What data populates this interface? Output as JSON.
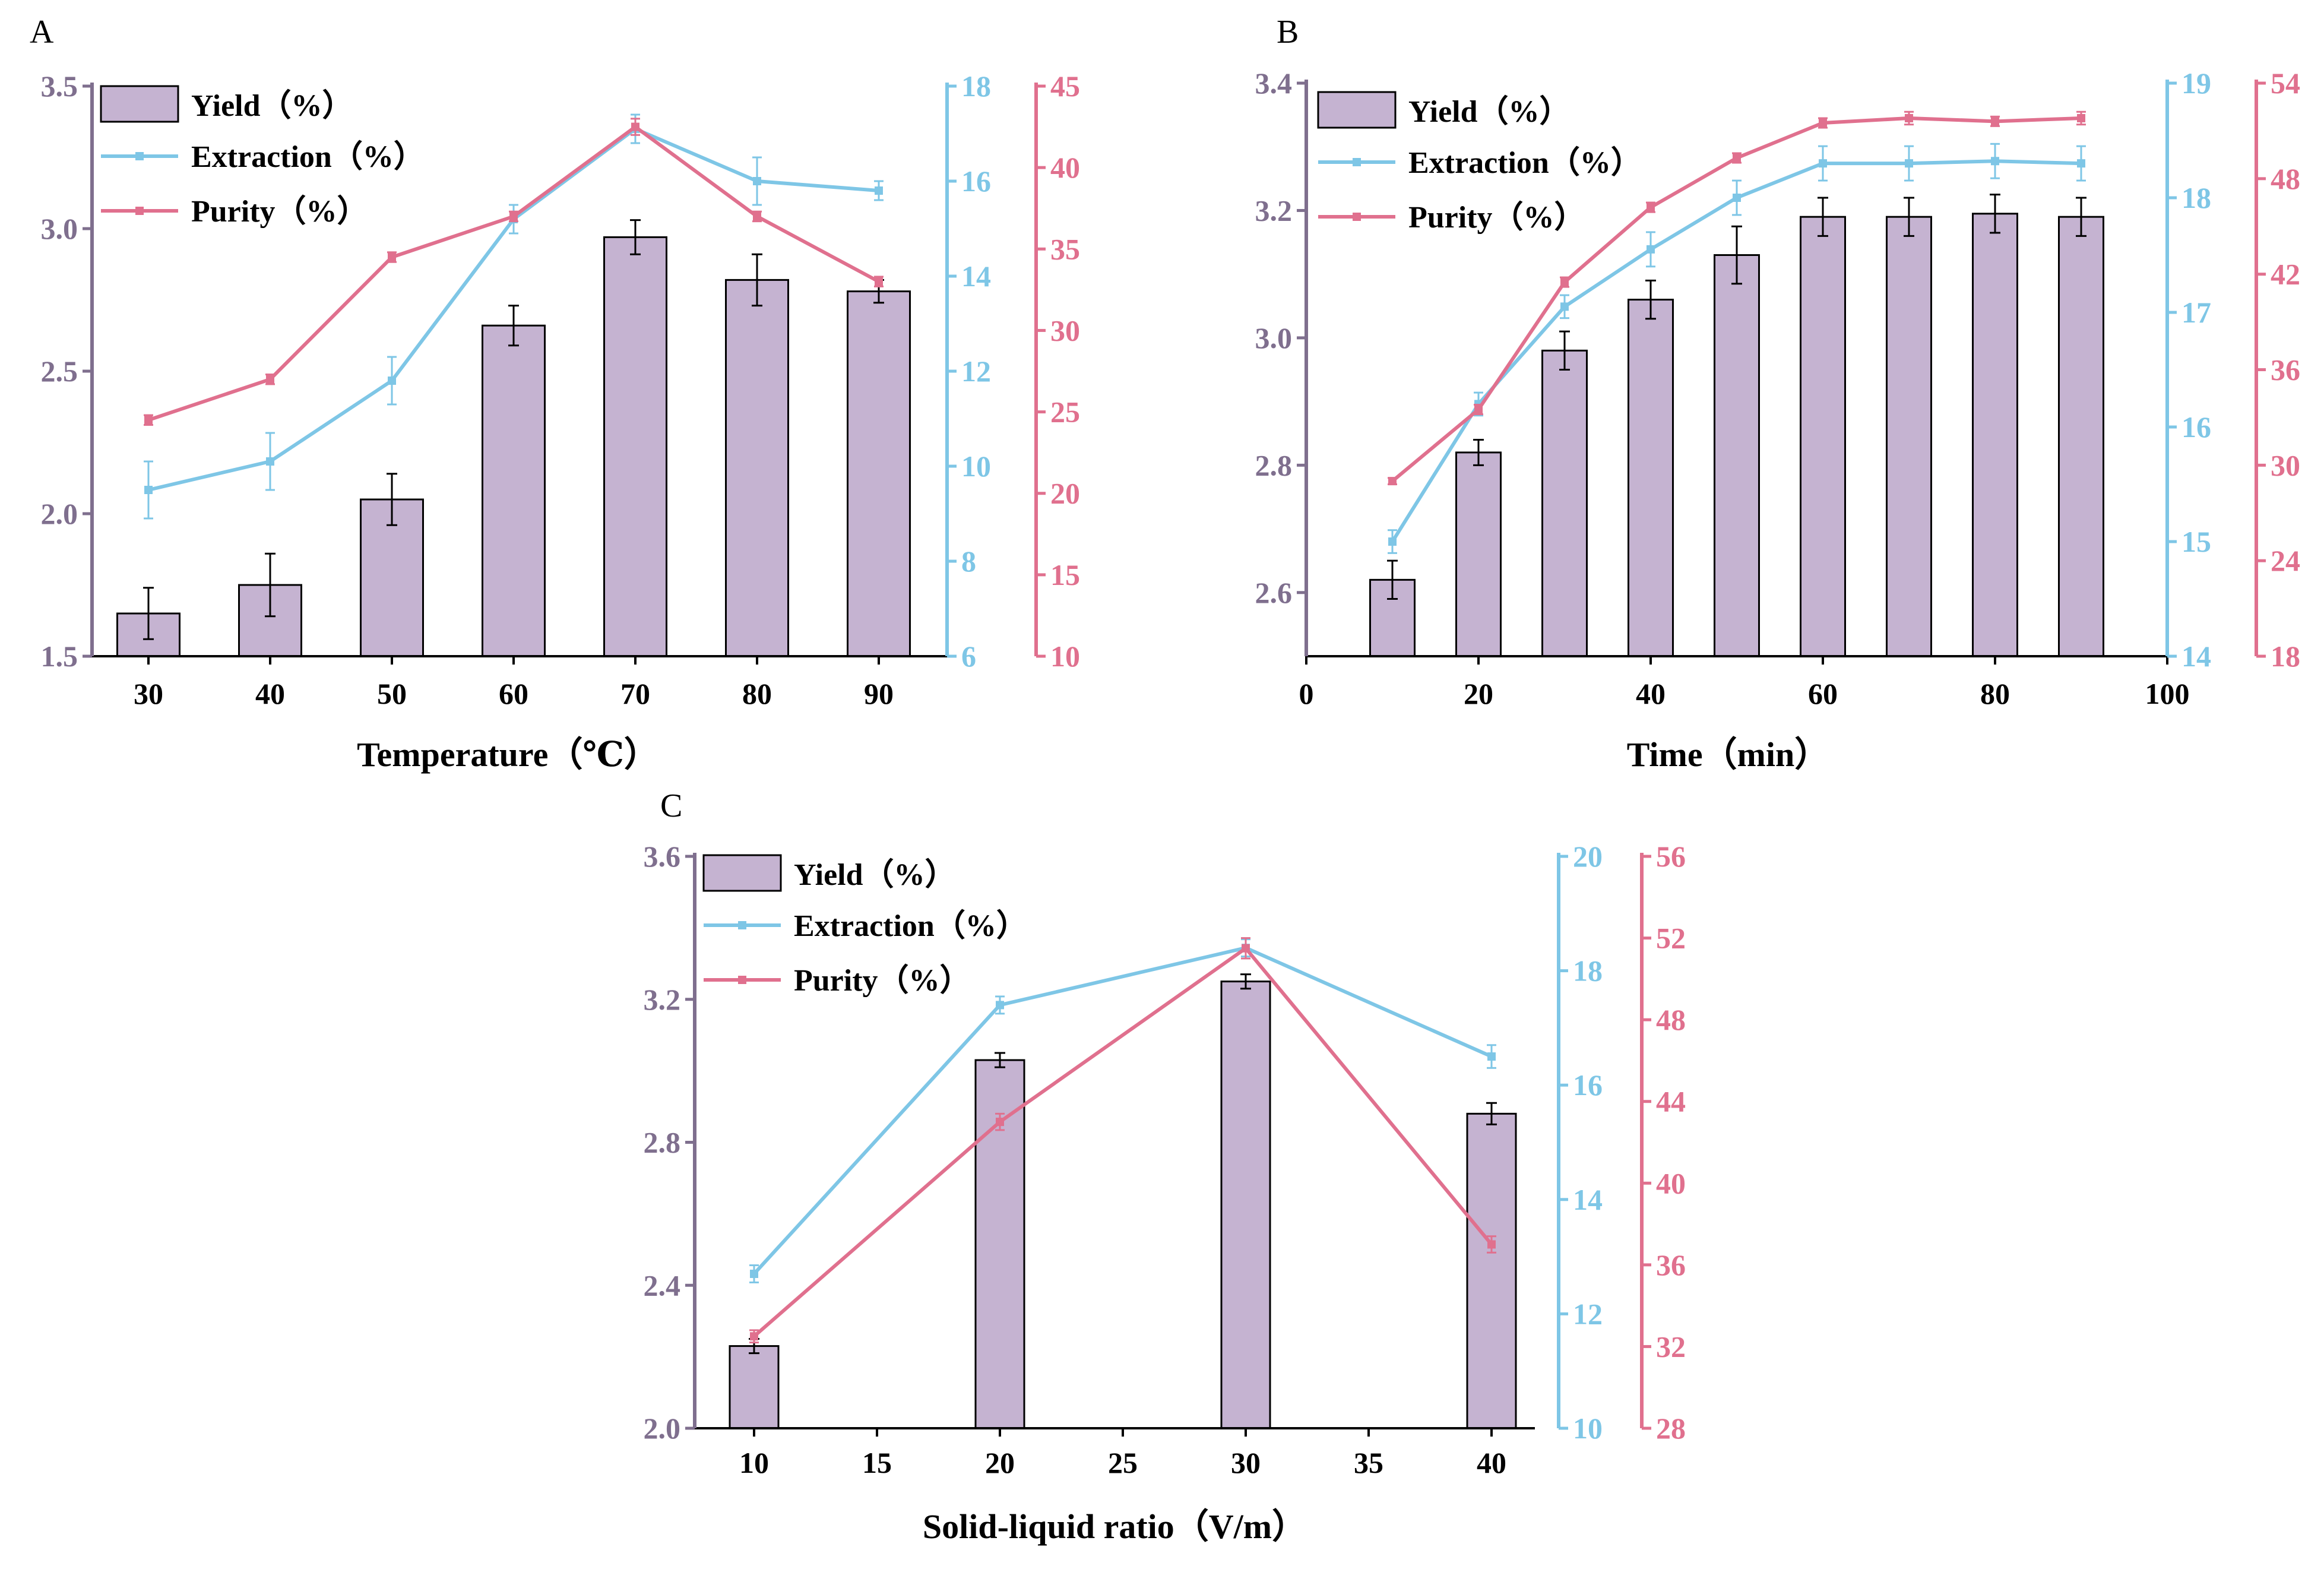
{
  "colors": {
    "yield_axis": "#7f6f8e",
    "bar_fill": "#c5b3d1",
    "bar_stroke": "#000000",
    "extraction": "#7ec6e6",
    "purity": "#e0708e",
    "axis_black": "#000000"
  },
  "chart_data": [
    {
      "type": "bar",
      "panel_label": "A",
      "xlabel": "Temperature（℃）",
      "x_numeric": false,
      "categories": [
        "30",
        "40",
        "50",
        "60",
        "70",
        "80",
        "90"
      ],
      "x_ticks": [
        "30",
        "40",
        "50",
        "60",
        "70",
        "80",
        "90"
      ],
      "legend": {
        "yield": "Yield（%）",
        "extraction": "Extraction（%）",
        "purity": "Purity（%）"
      },
      "legend_placement": "top-left",
      "axes": {
        "yield": {
          "range": [
            1.5,
            3.5
          ],
          "ticks": [
            "1.5",
            "2.0",
            "2.5",
            "3.0",
            "3.5"
          ]
        },
        "extraction": {
          "range": [
            6,
            18
          ],
          "ticks": [
            "6",
            "8",
            "10",
            "12",
            "14",
            "16",
            "18"
          ]
        },
        "purity": {
          "range": [
            10,
            45
          ],
          "ticks": [
            "10",
            "15",
            "20",
            "25",
            "30",
            "35",
            "40",
            "45"
          ]
        }
      },
      "series": [
        {
          "name": "Yield（%）",
          "kind": "bar",
          "axis": "yield",
          "x": [
            30,
            40,
            50,
            60,
            70,
            80,
            90
          ],
          "values": [
            1.65,
            1.75,
            2.05,
            2.66,
            2.97,
            2.82,
            2.78
          ],
          "errors": [
            0.09,
            0.11,
            0.09,
            0.07,
            0.06,
            0.09,
            0.04
          ]
        },
        {
          "name": "Extraction（%）",
          "kind": "line",
          "axis": "extraction",
          "x": [
            30,
            40,
            50,
            60,
            70,
            80,
            90
          ],
          "values": [
            9.5,
            10.1,
            11.8,
            15.2,
            17.1,
            16.0,
            15.8
          ],
          "errors": [
            0.6,
            0.6,
            0.5,
            0.3,
            0.3,
            0.5,
            0.2
          ]
        },
        {
          "name": "Purity（%）",
          "kind": "line",
          "axis": "purity",
          "x": [
            30,
            40,
            50,
            60,
            70,
            80,
            90
          ],
          "values": [
            24.5,
            27.0,
            34.5,
            37.0,
            42.5,
            37.0,
            33.0
          ],
          "errors": [
            0.3,
            0.3,
            0.3,
            0.3,
            0.5,
            0.3,
            0.3
          ]
        }
      ]
    },
    {
      "type": "bar",
      "panel_label": "B",
      "xlabel": "Time（min）",
      "x_numeric": true,
      "x_range": [
        0,
        100
      ],
      "x_ticks": [
        "0",
        "20",
        "40",
        "60",
        "80",
        "100"
      ],
      "legend": {
        "yield": "Yield（%）",
        "extraction": "Extraction（%）",
        "purity": "Purity（%）"
      },
      "legend_placement": "top-left",
      "axes": {
        "yield": {
          "range": [
            2.5,
            3.4
          ],
          "ticks": [
            "2.6",
            "2.8",
            "3.0",
            "3.2",
            "3.4"
          ]
        },
        "extraction": {
          "range": [
            14,
            19
          ],
          "ticks": [
            "14",
            "15",
            "16",
            "17",
            "18",
            "19"
          ]
        },
        "purity": {
          "range": [
            18,
            54
          ],
          "ticks": [
            "18",
            "24",
            "30",
            "36",
            "42",
            "48",
            "54"
          ]
        }
      },
      "series": [
        {
          "name": "Yield（%）",
          "kind": "bar",
          "axis": "yield",
          "x": [
            10,
            20,
            30,
            40,
            50,
            60,
            70,
            80,
            90
          ],
          "values": [
            2.62,
            2.82,
            2.98,
            3.06,
            3.13,
            3.19,
            3.19,
            3.195,
            3.19
          ],
          "errors": [
            0.03,
            0.02,
            0.03,
            0.03,
            0.045,
            0.03,
            0.03,
            0.03,
            0.03
          ]
        },
        {
          "name": "Extraction（%）",
          "kind": "line",
          "axis": "extraction",
          "x": [
            10,
            20,
            30,
            40,
            50,
            60,
            70,
            80,
            90
          ],
          "values": [
            15.0,
            16.2,
            17.05,
            17.55,
            18.0,
            18.3,
            18.3,
            18.32,
            18.3
          ],
          "errors": [
            0.1,
            0.1,
            0.1,
            0.15,
            0.15,
            0.15,
            0.15,
            0.15,
            0.15
          ]
        },
        {
          "name": "Purity（%）",
          "kind": "line",
          "axis": "purity",
          "x": [
            10,
            20,
            30,
            40,
            50,
            60,
            70,
            80,
            90
          ],
          "values": [
            29.0,
            33.5,
            41.5,
            46.2,
            49.3,
            51.5,
            51.8,
            51.6,
            51.8
          ],
          "errors": [
            0.2,
            0.3,
            0.3,
            0.3,
            0.3,
            0.3,
            0.4,
            0.3,
            0.4
          ]
        }
      ]
    },
    {
      "type": "bar",
      "panel_label": "C",
      "xlabel": "Solid-liquid ratio（V/m）",
      "x_numeric": true,
      "x_range": [
        7,
        42.5
      ],
      "x_ticks": [
        "10",
        "15",
        "20",
        "25",
        "30",
        "35",
        "40"
      ],
      "legend": {
        "yield": "Yield（%）",
        "extraction": "Extraction（%）",
        "purity": "Purity（%）"
      },
      "legend_placement": "top-left",
      "axes": {
        "yield": {
          "range": [
            2.0,
            3.6
          ],
          "ticks": [
            "2.0",
            "2.4",
            "2.8",
            "3.2",
            "3.6"
          ]
        },
        "extraction": {
          "range": [
            10,
            20
          ],
          "ticks": [
            "10",
            "12",
            "14",
            "16",
            "18",
            "20"
          ]
        },
        "purity": {
          "range": [
            28,
            56
          ],
          "ticks": [
            "28",
            "32",
            "36",
            "40",
            "44",
            "48",
            "52",
            "56"
          ]
        }
      },
      "series": [
        {
          "name": "Yield（%）",
          "kind": "bar",
          "axis": "yield",
          "x": [
            10,
            20,
            30,
            40
          ],
          "values": [
            2.23,
            3.03,
            3.25,
            2.88
          ],
          "errors": [
            0.02,
            0.02,
            0.02,
            0.03
          ]
        },
        {
          "name": "Extraction（%）",
          "kind": "line",
          "axis": "extraction",
          "x": [
            10,
            20,
            30,
            40
          ],
          "values": [
            12.7,
            17.4,
            18.4,
            16.5
          ],
          "errors": [
            0.15,
            0.15,
            0.15,
            0.2
          ]
        },
        {
          "name": "Purity（%）",
          "kind": "line",
          "axis": "purity",
          "x": [
            10,
            20,
            30,
            40
          ],
          "values": [
            32.5,
            43.0,
            51.5,
            37.0
          ],
          "errors": [
            0.3,
            0.4,
            0.5,
            0.4
          ]
        }
      ]
    }
  ]
}
